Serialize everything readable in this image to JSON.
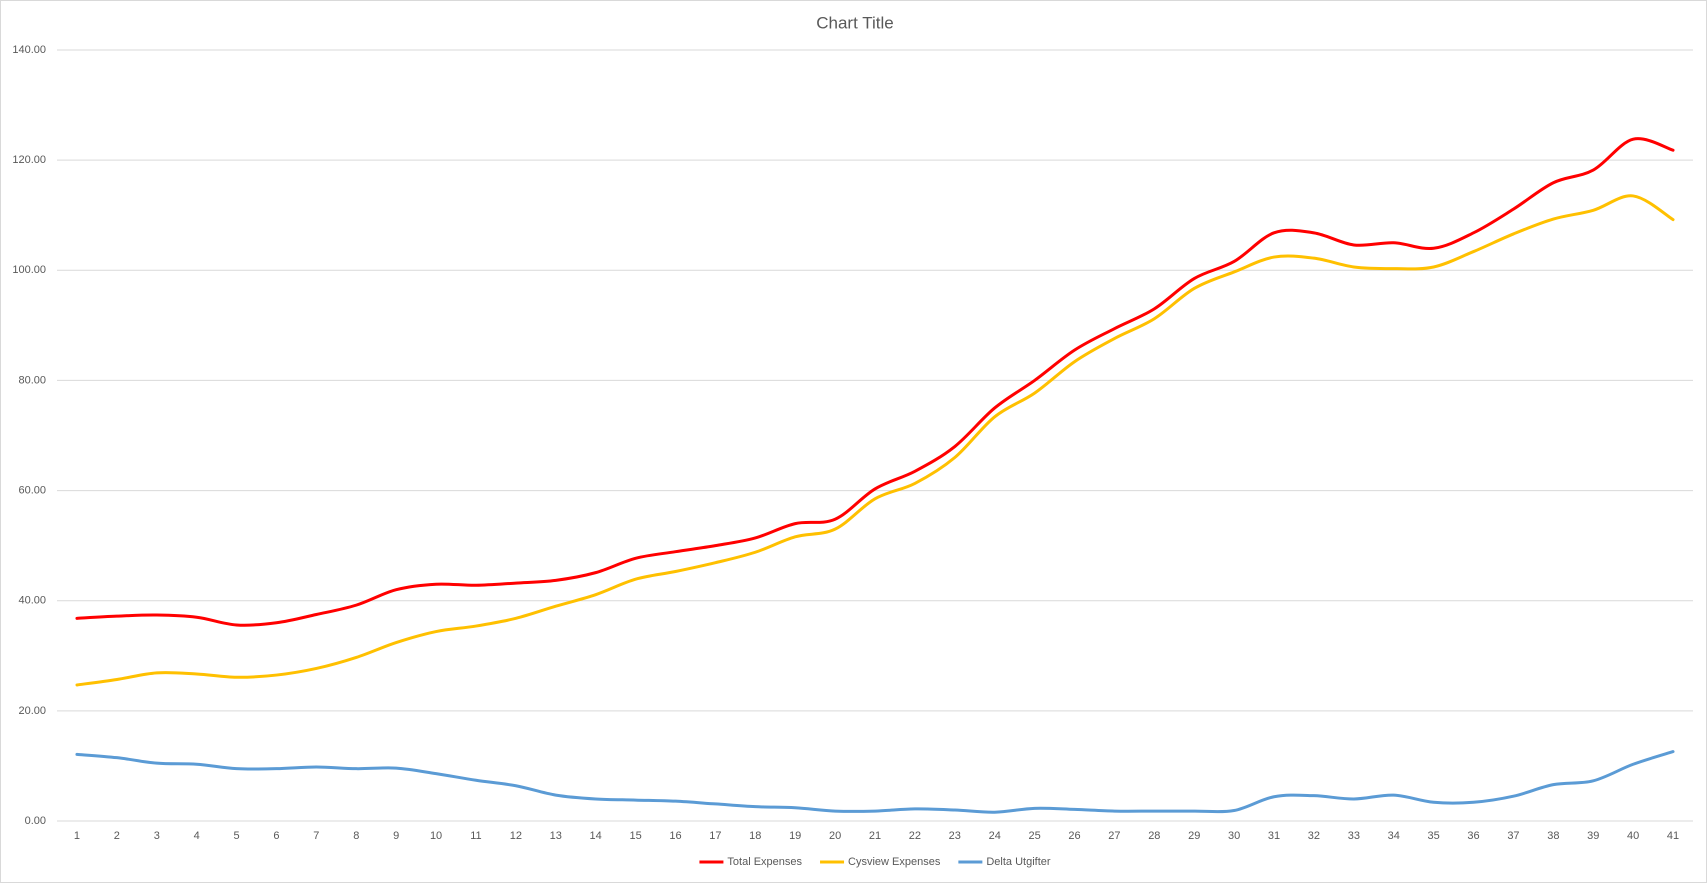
{
  "chart_data": {
    "type": "line",
    "title": "Chart Title",
    "categories": [
      "1",
      "2",
      "3",
      "4",
      "5",
      "6",
      "7",
      "8",
      "9",
      "10",
      "11",
      "12",
      "13",
      "14",
      "15",
      "16",
      "17",
      "18",
      "19",
      "20",
      "21",
      "22",
      "23",
      "24",
      "25",
      "26",
      "27",
      "28",
      "29",
      "30",
      "31",
      "32",
      "33",
      "34",
      "35",
      "36",
      "37",
      "38",
      "39",
      "40",
      "41"
    ],
    "series": [
      {
        "name": "Total Expenses",
        "color": "#ff0000",
        "values": [
          36.8,
          37.2,
          37.4,
          37.0,
          35.6,
          36.0,
          37.5,
          39.2,
          42.0,
          43.0,
          42.8,
          43.2,
          43.7,
          45.1,
          47.7,
          48.9,
          50.0,
          51.4,
          54.0,
          54.8,
          60.3,
          63.5,
          68.0,
          75.0,
          80.0,
          85.5,
          89.4,
          93.0,
          98.5,
          101.6,
          106.8,
          106.8,
          104.6,
          105.0,
          104.0,
          106.8,
          111.1,
          115.9,
          118.2,
          123.8,
          121.8
        ]
      },
      {
        "name": "Cysview Expenses",
        "color": "#ffc000",
        "values": [
          24.7,
          25.7,
          26.9,
          26.7,
          26.1,
          26.5,
          27.7,
          29.7,
          32.4,
          34.4,
          35.4,
          36.8,
          39.0,
          41.1,
          43.9,
          45.3,
          46.9,
          48.8,
          51.6,
          53.0,
          58.5,
          61.3,
          66.0,
          73.4,
          77.7,
          83.4,
          87.6,
          91.2,
          96.7,
          99.7,
          102.4,
          102.2,
          100.6,
          100.3,
          100.6,
          103.4,
          106.6,
          109.3,
          110.9,
          113.5,
          109.2
        ]
      },
      {
        "name": "Delta Utgifter",
        "color": "#5b9bd5",
        "values": [
          12.1,
          11.5,
          10.5,
          10.3,
          9.5,
          9.5,
          9.8,
          9.5,
          9.6,
          8.6,
          7.4,
          6.4,
          4.7,
          4.0,
          3.8,
          3.6,
          3.1,
          2.6,
          2.4,
          1.8,
          1.8,
          2.2,
          2.0,
          1.6,
          2.3,
          2.1,
          1.8,
          1.8,
          1.8,
          1.9,
          4.4,
          4.6,
          4.0,
          4.7,
          3.4,
          3.4,
          4.5,
          6.6,
          7.3,
          10.3,
          12.6
        ]
      }
    ],
    "ylim": [
      0,
      140
    ],
    "yticks": [
      {
        "value": 0,
        "label": "0.00"
      },
      {
        "value": 20,
        "label": "20.00"
      },
      {
        "value": 40,
        "label": "40.00"
      },
      {
        "value": 60,
        "label": "60.00"
      },
      {
        "value": 80,
        "label": "80.00"
      },
      {
        "value": 100,
        "label": "100.00"
      },
      {
        "value": 120,
        "label": "120.00"
      },
      {
        "value": 140,
        "label": "140.00"
      }
    ],
    "grid": true,
    "legend": "bottom",
    "smooth": true
  }
}
